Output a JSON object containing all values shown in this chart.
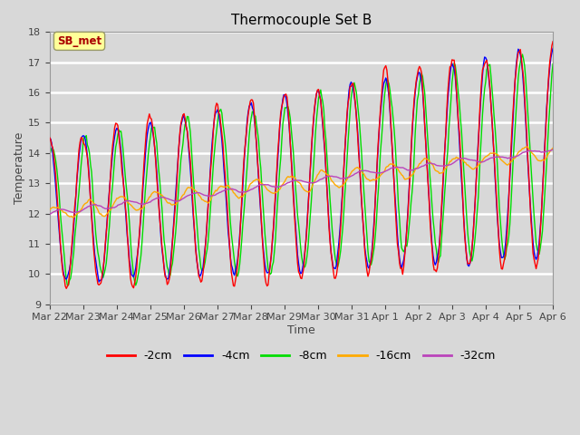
{
  "title": "Thermocouple Set B",
  "xlabel": "Time",
  "ylabel": "Temperature",
  "ylim": [
    9.0,
    18.0
  ],
  "yticks": [
    9.0,
    10.0,
    11.0,
    12.0,
    13.0,
    14.0,
    15.0,
    16.0,
    17.0,
    18.0
  ],
  "colors": {
    "2cm": "#ff0000",
    "4cm": "#0000ff",
    "8cm": "#00dd00",
    "16cm": "#ffaa00",
    "32cm": "#bb44bb"
  },
  "legend_labels": [
    "-2cm",
    "-4cm",
    "-8cm",
    "-16cm",
    "-32cm"
  ],
  "sb_met_label": "SB_met",
  "sb_met_color": "#ffff99",
  "sb_met_text_color": "#aa0000",
  "background_color": "#d8d8d8",
  "plot_bg_color": "#d8d8d8",
  "grid_color": "#ffffff",
  "xtick_labels": [
    "Mar 22",
    "Mar 23",
    "Mar 24",
    "Mar 25",
    "Mar 26",
    "Mar 27",
    "Mar 28",
    "Mar 29",
    "Mar 30",
    "Mar 31",
    "Apr 1",
    "Apr 2",
    "Apr 3",
    "Apr 4",
    "Apr 5",
    "Apr 6"
  ],
  "n_points": 480
}
